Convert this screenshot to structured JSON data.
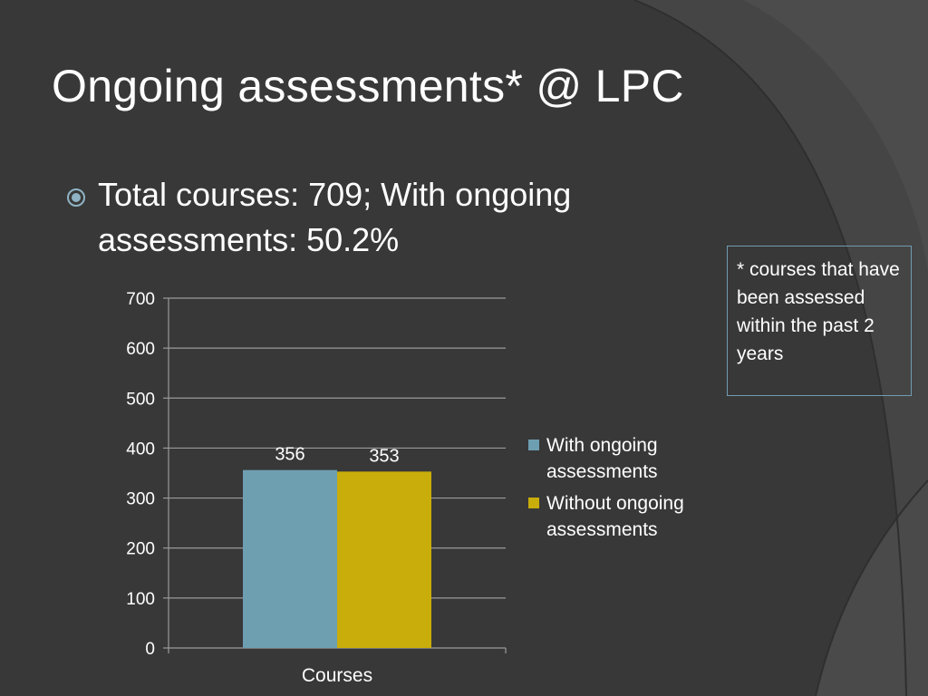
{
  "slide": {
    "title": "Ongoing assessments* @ LPC",
    "bullet": "Total courses: 709; With ongoing assessments: 50.2%",
    "note": "* courses that have been assessed within the past 2 years"
  },
  "colors": {
    "background": "#383838",
    "series_with": "#6e9fb1",
    "series_without": "#c9ad0a",
    "note_border": "#6f9caf"
  },
  "chart_data": {
    "type": "bar",
    "categories": [
      "Courses"
    ],
    "series": [
      {
        "name": "With ongoing assessments",
        "values": [
          356
        ],
        "color": "#6e9fb1"
      },
      {
        "name": "Without ongoing assessments",
        "values": [
          353
        ],
        "color": "#c9ad0a"
      }
    ],
    "data_labels": [
      "356",
      "353"
    ],
    "xlabel": "Courses",
    "ylabel": "",
    "ylim": [
      0,
      700
    ],
    "yticks": [
      0,
      100,
      200,
      300,
      400,
      500,
      600,
      700
    ],
    "grid": true,
    "legend": "right"
  }
}
